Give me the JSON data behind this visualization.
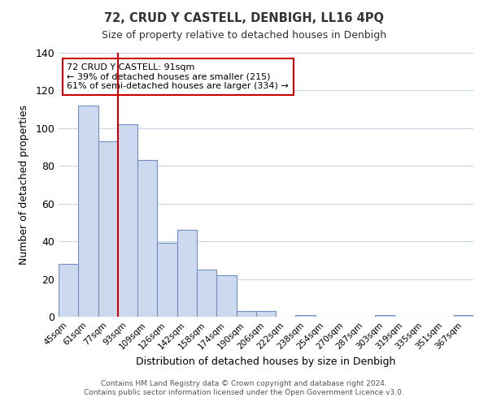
{
  "title": "72, CRUD Y CASTELL, DENBIGH, LL16 4PQ",
  "subtitle": "Size of property relative to detached houses in Denbigh",
  "xlabel": "Distribution of detached houses by size in Denbigh",
  "ylabel": "Number of detached properties",
  "bar_labels": [
    "45sqm",
    "61sqm",
    "77sqm",
    "93sqm",
    "109sqm",
    "126sqm",
    "142sqm",
    "158sqm",
    "174sqm",
    "190sqm",
    "206sqm",
    "222sqm",
    "238sqm",
    "254sqm",
    "270sqm",
    "287sqm",
    "303sqm",
    "319sqm",
    "335sqm",
    "351sqm",
    "367sqm"
  ],
  "bar_values": [
    28,
    112,
    93,
    102,
    83,
    39,
    46,
    25,
    22,
    3,
    3,
    0,
    1,
    0,
    0,
    0,
    1,
    0,
    0,
    0,
    1
  ],
  "bar_color": "#cdd9ef",
  "bar_edge_color": "#7090c0",
  "vline_color": "#cc0000",
  "ylim": [
    0,
    140
  ],
  "yticks": [
    0,
    20,
    40,
    60,
    80,
    100,
    120,
    140
  ],
  "annotation_title": "72 CRUD Y CASTELL: 91sqm",
  "annotation_line1": "← 39% of detached houses are smaller (215)",
  "annotation_line2": "61% of semi-detached houses are larger (334) →",
  "annotation_box_color": "#ffffff",
  "annotation_box_edge": "#cc0000",
  "footer_line1": "Contains HM Land Registry data © Crown copyright and database right 2024.",
  "footer_line2": "Contains public sector information licensed under the Open Government Licence v3.0.",
  "background_color": "#ffffff",
  "grid_color": "#c8d8ec"
}
